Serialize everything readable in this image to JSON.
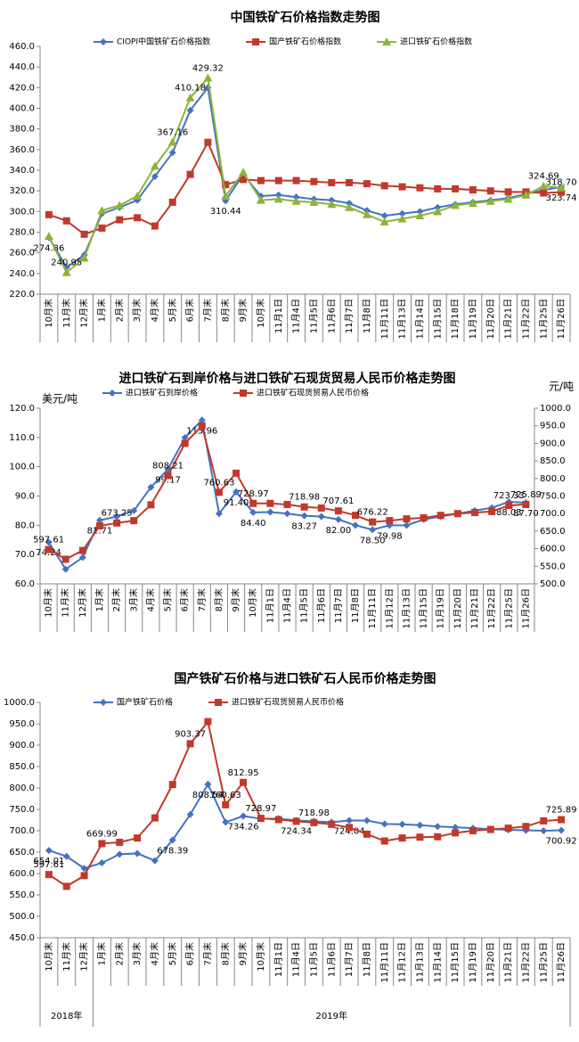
{
  "chart_data": [
    {
      "type": "line",
      "title": "中国铁矿石价格指数走势图",
      "categories": [
        "10月末",
        "11月末",
        "12月末",
        "1月末",
        "2月末",
        "3月末",
        "4月末",
        "5月末",
        "6月末",
        "7月末",
        "8月末",
        "9月末",
        "10月末",
        "11月1日",
        "11月4日",
        "11月5日",
        "11月6日",
        "11月7日",
        "11月8日",
        "11月11日",
        "11月13日",
        "11月14日",
        "11月15日",
        "11月18日",
        "11月19日",
        "11月20日",
        "11月21日",
        "11月22日",
        "11月25日",
        "11月26日"
      ],
      "ylim": [
        220,
        460
      ],
      "yticks": [
        {
          "value": 220,
          "label": "220.0"
        },
        {
          "value": 240,
          "label": "240.0"
        },
        {
          "value": 260,
          "label": "260.0"
        },
        {
          "value": 280,
          "label": "280.0"
        },
        {
          "value": 300,
          "label": "300.0"
        },
        {
          "value": 320,
          "label": "320.0"
        },
        {
          "value": 340,
          "label": "340.0"
        },
        {
          "value": 360,
          "label": "360.0"
        },
        {
          "value": 380,
          "label": "380.0"
        },
        {
          "value": 400,
          "label": "400.0"
        },
        {
          "value": 420,
          "label": "420.0"
        },
        {
          "value": 440,
          "label": "440.0"
        },
        {
          "value": 460,
          "label": "460.0"
        }
      ],
      "grid": false,
      "series": [
        {
          "name": "CIOPI中国铁矿石价格指数",
          "color": "#4472c4",
          "marker": "diamond",
          "values": [
            274.86,
            246,
            258,
            298,
            304,
            311,
            334,
            357,
            398,
            420,
            310.44,
            336,
            315,
            316,
            314,
            312,
            311,
            308,
            301,
            296,
            298,
            300,
            304,
            307,
            309,
            311,
            313,
            317,
            321,
            323.74
          ],
          "value_labels": [
            "274.86",
            null,
            null,
            null,
            null,
            null,
            null,
            null,
            null,
            null,
            "310.44",
            null,
            null,
            null,
            null,
            null,
            null,
            null,
            null,
            null,
            null,
            null,
            null,
            null,
            null,
            null,
            null,
            null,
            null,
            "323.74"
          ]
        },
        {
          "name": "国产铁矿石价格指数",
          "color": "#c0392b",
          "marker": "square",
          "values": [
            297,
            291,
            278,
            284,
            292,
            294,
            286,
            309,
            336,
            367,
            326,
            331,
            330,
            330,
            330,
            329,
            328,
            328,
            327,
            325,
            324,
            323,
            322,
            322,
            321,
            320,
            319,
            319,
            318,
            318.7
          ],
          "value_labels": [
            null,
            null,
            null,
            null,
            null,
            null,
            null,
            null,
            null,
            null,
            null,
            null,
            null,
            null,
            null,
            null,
            null,
            null,
            null,
            null,
            null,
            null,
            null,
            null,
            null,
            null,
            null,
            null,
            null,
            "318.70"
          ]
        },
        {
          "name": "进口铁矿石价格指数",
          "color": "#8db33a",
          "marker": "triangle",
          "values": [
            276,
            240.95,
            255,
            301,
            306,
            315,
            344,
            367.16,
            410.18,
            429.32,
            315,
            338,
            311,
            312,
            310,
            309,
            307,
            304,
            297,
            290,
            293,
            296,
            300,
            306,
            308,
            310,
            312,
            316,
            324.69,
            323
          ],
          "value_labels": [
            null,
            "240.95",
            null,
            null,
            null,
            null,
            null,
            "367.16",
            "410.18",
            "429.32",
            null,
            null,
            null,
            null,
            null,
            null,
            null,
            null,
            null,
            null,
            null,
            null,
            null,
            null,
            null,
            null,
            null,
            null,
            "324.69",
            null
          ]
        }
      ]
    },
    {
      "type": "line",
      "title": "进口铁矿石到岸价格与进口铁矿石现货贸易人民币价格走势图",
      "y_label": "美元/吨",
      "y2_label": "元/吨",
      "categories": [
        "10月末",
        "11月末",
        "12月末",
        "1月末",
        "2月末",
        "3月末",
        "4月末",
        "5月末",
        "6月末",
        "7月末",
        "8月末",
        "9月末",
        "10月末",
        "11月1日",
        "11月4日",
        "11月5日",
        "11月6日",
        "11月7日",
        "11月8日",
        "11月11日",
        "11月12日",
        "11月13日",
        "11月15日",
        "11月19日",
        "11月20日",
        "11月21日",
        "11月22日",
        "11月25日",
        "11月26日"
      ],
      "ylim": [
        60,
        120
      ],
      "yticks": [
        {
          "value": 60,
          "label": "60.0"
        },
        {
          "value": 70,
          "label": "70.0"
        },
        {
          "value": 80,
          "label": "80.0"
        },
        {
          "value": 90,
          "label": "90.0"
        },
        {
          "value": 100,
          "label": "100.0"
        },
        {
          "value": 110,
          "label": "110.0"
        },
        {
          "value": 120,
          "label": "120.0"
        }
      ],
      "y2lim": [
        500,
        1000
      ],
      "y2ticks": [
        {
          "value": 500,
          "label": "500.0"
        },
        {
          "value": 550,
          "label": "550.0"
        },
        {
          "value": 600,
          "label": "600.0"
        },
        {
          "value": 650,
          "label": "650.0"
        },
        {
          "value": 700,
          "label": "700.0"
        },
        {
          "value": 750,
          "label": "750.0"
        },
        {
          "value": 800,
          "label": "800.0"
        },
        {
          "value": 850,
          "label": "850.0"
        },
        {
          "value": 900,
          "label": "900.0"
        },
        {
          "value": 950,
          "label": "950.0"
        },
        {
          "value": 1000,
          "label": "1000.0"
        }
      ],
      "grid": false,
      "series": [
        {
          "name": "进口铁矿石到岸价格",
          "color": "#4472c4",
          "marker": "diamond",
          "values": [
            74.24,
            65,
            69,
            81.71,
            83,
            85,
            93,
            99.17,
            110,
            115.96,
            84,
            91.4,
            84.4,
            84.5,
            84,
            83.27,
            83,
            82.0,
            80,
            78.5,
            79.98,
            80,
            82,
            83,
            84,
            85,
            86,
            88.03,
            87.7
          ],
          "value_labels": [
            "74.24",
            null,
            null,
            "81.71",
            null,
            null,
            null,
            "99.17",
            null,
            "115.96",
            null,
            "91.40",
            "84.40",
            null,
            null,
            "83.27",
            null,
            "82.00",
            null,
            "78.50",
            "79.98",
            null,
            null,
            null,
            null,
            null,
            null,
            "88.03",
            "87.70"
          ]
        },
        {
          "name": "进口铁矿石现货贸易人民币价格",
          "color": "#c0392b",
          "marker": "square",
          "axis": "y2",
          "values": [
            597.61,
            570,
            595,
            665,
            673.25,
            680,
            725,
            808.21,
            900,
            950,
            760.63,
            815,
            728.97,
            729,
            726,
            718.98,
            716,
            707.61,
            695,
            676.22,
            680,
            685,
            688,
            695,
            700,
            703,
            706,
            723.33,
            725.89
          ],
          "value_labels": [
            "597.61",
            null,
            null,
            null,
            "673.25",
            null,
            null,
            "808.21",
            null,
            null,
            "760.63",
            null,
            "728.97",
            null,
            null,
            "718.98",
            null,
            "707.61",
            null,
            "676.22",
            null,
            null,
            null,
            null,
            null,
            null,
            null,
            "723.33",
            "725.89"
          ]
        }
      ]
    },
    {
      "type": "line",
      "title": "国产铁矿石价格与进口铁矿石人民币价格走势图",
      "categories": [
        "10月末",
        "11月末",
        "12月末",
        "1月末",
        "2月末",
        "3月末",
        "4月末",
        "5月末",
        "6月末",
        "7月末",
        "8月末",
        "9月末",
        "10月末",
        "11月1日",
        "11月4日",
        "11月5日",
        "11月6日",
        "11月7日",
        "11月8日",
        "11月11日",
        "11月12日",
        "11月13日",
        "11月14日",
        "11月15日",
        "11月19日",
        "11月20日",
        "11月21日",
        "11月22日",
        "11月25日",
        "11月26日"
      ],
      "x_groups": [
        {
          "label": "2018年",
          "start": 0,
          "end": 2
        },
        {
          "label": "2019年",
          "start": 3,
          "end": 29
        }
      ],
      "ylim": [
        450,
        1000
      ],
      "yticks": [
        {
          "value": 450,
          "label": "450.0"
        },
        {
          "value": 500,
          "label": "500.0"
        },
        {
          "value": 550,
          "label": "550.0"
        },
        {
          "value": 600,
          "label": "600.0"
        },
        {
          "value": 650,
          "label": "650.0"
        },
        {
          "value": 700,
          "label": "700.0"
        },
        {
          "value": 750,
          "label": "750.0"
        },
        {
          "value": 800,
          "label": "800.0"
        },
        {
          "value": 850,
          "label": "850.0"
        },
        {
          "value": 900,
          "label": "900.0"
        },
        {
          "value": 950,
          "label": "950.0"
        },
        {
          "value": 1000,
          "label": "1000.0"
        }
      ],
      "grid": false,
      "series": [
        {
          "name": "国产铁矿石价格",
          "color": "#4472c4",
          "marker": "diamond",
          "values": [
            654.01,
            640,
            612,
            625,
            645,
            647,
            630,
            678.39,
            738,
            808.54,
            720,
            734.26,
            728,
            728,
            724.34,
            722,
            720,
            724.04,
            724,
            716,
            715,
            713,
            710,
            708,
            706,
            704,
            702,
            701,
            700,
            700.92
          ],
          "value_labels": [
            "654.01",
            null,
            null,
            null,
            null,
            null,
            null,
            "678.39",
            null,
            "808.54",
            null,
            "734.26",
            null,
            null,
            "724.34",
            null,
            null,
            "724.04",
            null,
            null,
            null,
            null,
            null,
            null,
            null,
            null,
            null,
            null,
            null,
            "700.92"
          ]
        },
        {
          "name": "进口铁矿石现货贸易人民币价格",
          "color": "#c0392b",
          "marker": "square",
          "values": [
            597.61,
            570,
            595,
            669.99,
            673,
            683,
            730,
            808,
            903.37,
            955,
            760.63,
            812.95,
            728.97,
            726,
            722,
            718.98,
            715,
            707.61,
            692,
            676,
            683,
            685,
            686,
            695,
            700,
            703,
            706,
            710,
            723,
            725.89
          ],
          "value_labels": [
            "597.61",
            null,
            null,
            "669.99",
            null,
            null,
            null,
            null,
            "903.37",
            null,
            "760.63",
            "812.95",
            "728.97",
            null,
            null,
            "718.98",
            null,
            null,
            null,
            null,
            null,
            null,
            null,
            null,
            null,
            null,
            null,
            null,
            null,
            "725.89"
          ]
        }
      ]
    }
  ]
}
